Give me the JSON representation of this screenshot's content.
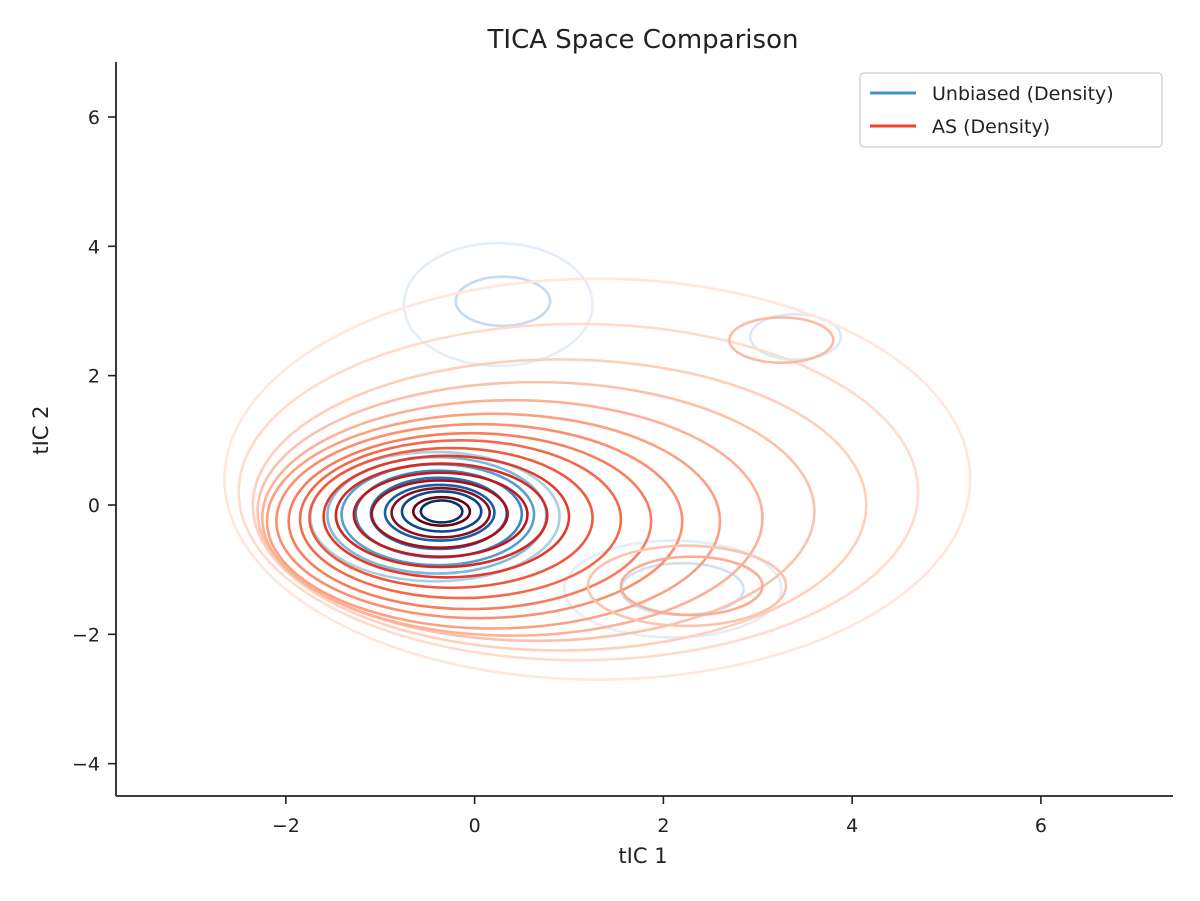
{
  "chart_data": {
    "type": "contour",
    "title": "TICA Space Comparison",
    "xlabel": "tIC 1",
    "ylabel": "tIC 2",
    "xlim": [
      -3.8,
      7.4
    ],
    "ylim": [
      -4.5,
      6.85
    ],
    "xticks": [
      -2,
      0,
      2,
      4,
      6
    ],
    "yticks": [
      -4,
      -2,
      0,
      2,
      4,
      6
    ],
    "xtick_labels": [
      "−2",
      "0",
      "2",
      "4",
      "6"
    ],
    "ytick_labels": [
      "−4",
      "−2",
      "0",
      "2",
      "4",
      "6"
    ],
    "grid": false,
    "legend": {
      "position": "top-right",
      "entries": [
        {
          "label": "Unbiased (Density)",
          "color": "#4393c3"
        },
        {
          "label": "AS (Density)",
          "color": "#e8452e"
        }
      ]
    },
    "series": [
      {
        "name": "Unbiased (Density)",
        "colormap": "Blues",
        "modes": [
          {
            "center": [
              -0.35,
              -0.1
            ],
            "spread": [
              0.2,
              0.15
            ]
          },
          {
            "center": [
              0.3,
              3.1
            ],
            "spread": [
              0.5,
              0.35
            ]
          },
          {
            "center": [
              3.4,
              2.6
            ],
            "spread": [
              0.45,
              0.3
            ]
          },
          {
            "center": [
              2.1,
              -1.3
            ],
            "spread": [
              0.6,
              0.35
            ]
          }
        ],
        "levels": [
          {
            "cx": -0.35,
            "cy": -0.1,
            "rx": 0.22,
            "ry": 0.17,
            "color": "#08306b"
          },
          {
            "cx": -0.35,
            "cy": -0.1,
            "rx": 0.42,
            "ry": 0.31,
            "color": "#0b4690"
          },
          {
            "cx": -0.37,
            "cy": -0.12,
            "rx": 0.58,
            "ry": 0.43,
            "color": "#1460a8"
          },
          {
            "cx": -0.38,
            "cy": -0.13,
            "rx": 0.72,
            "ry": 0.55,
            "color": "#2373b6"
          },
          {
            "cx": -0.38,
            "cy": -0.14,
            "rx": 0.88,
            "ry": 0.67,
            "color": "#3787c0"
          },
          {
            "cx": -0.39,
            "cy": -0.15,
            "rx": 1.02,
            "ry": 0.78,
            "color": "#549fcd"
          },
          {
            "cx": -0.4,
            "cy": -0.16,
            "rx": 1.16,
            "ry": 0.9,
            "color": "#7fb8da"
          },
          {
            "cx": -0.42,
            "cy": -0.18,
            "rx": 1.32,
            "ry": 1.0,
            "color": "#a9cfe5"
          },
          {
            "cx": 0.3,
            "cy": 3.15,
            "rx": 0.5,
            "ry": 0.38,
            "color": "#c6dbef"
          },
          {
            "cx": 0.25,
            "cy": 3.1,
            "rx": 1.0,
            "ry": 0.95,
            "color": "#e3eef9"
          },
          {
            "cx": 3.4,
            "cy": 2.6,
            "rx": 0.48,
            "ry": 0.35,
            "color": "#dbe9f6"
          },
          {
            "cx": 2.2,
            "cy": -1.3,
            "rx": 0.65,
            "ry": 0.4,
            "color": "#cfe1f2"
          },
          {
            "cx": 2.1,
            "cy": -1.3,
            "rx": 1.15,
            "ry": 0.75,
            "color": "#e3eef9"
          }
        ]
      },
      {
        "name": "AS (Density)",
        "colormap": "Reds",
        "modes": [
          {
            "center": [
              -0.35,
              -0.15
            ],
            "spread": [
              0.9,
              0.7
            ]
          },
          {
            "center": [
              0.2,
              3.0
            ],
            "spread": [
              0.8,
              0.5
            ]
          },
          {
            "center": [
              3.2,
              2.5
            ],
            "spread": [
              0.6,
              0.4
            ]
          },
          {
            "center": [
              2.2,
              -1.2
            ],
            "spread": [
              0.9,
              0.5
            ]
          }
        ],
        "levels": [
          {
            "cx": -0.35,
            "cy": -0.1,
            "rx": 0.3,
            "ry": 0.22,
            "color": "#67000d"
          },
          {
            "cx": -0.36,
            "cy": -0.12,
            "rx": 0.52,
            "ry": 0.38,
            "color": "#8b0d15"
          },
          {
            "cx": -0.37,
            "cy": -0.14,
            "rx": 0.72,
            "ry": 0.52,
            "color": "#a50f15"
          },
          {
            "cx": -0.36,
            "cy": -0.15,
            "rx": 0.92,
            "ry": 0.65,
            "color": "#c0181e"
          },
          {
            "cx": -0.35,
            "cy": -0.16,
            "rx": 1.12,
            "ry": 0.8,
            "color": "#d42a25"
          },
          {
            "cx": -0.3,
            "cy": -0.18,
            "rx": 1.3,
            "ry": 0.94,
            "color": "#e43a2c"
          },
          {
            "cx": -0.25,
            "cy": -0.2,
            "rx": 1.5,
            "ry": 1.08,
            "color": "#ef5a3e"
          },
          {
            "cx": -0.15,
            "cy": -0.22,
            "rx": 1.7,
            "ry": 1.22,
            "color": "#f4694b"
          },
          {
            "cx": -0.05,
            "cy": -0.25,
            "rx": 1.92,
            "ry": 1.36,
            "color": "#f87d5e"
          },
          {
            "cx": 0.05,
            "cy": -0.25,
            "rx": 2.15,
            "ry": 1.5,
            "color": "#fb8f70"
          },
          {
            "cx": 0.2,
            "cy": -0.25,
            "rx": 2.4,
            "ry": 1.66,
            "color": "#fca082"
          },
          {
            "cx": 0.4,
            "cy": -0.2,
            "rx": 2.65,
            "ry": 1.82,
            "color": "#fcb196"
          },
          {
            "cx": 0.65,
            "cy": -0.1,
            "rx": 2.95,
            "ry": 2.0,
            "color": "#fcc1aa"
          },
          {
            "cx": 0.9,
            "cy": 0.0,
            "rx": 3.25,
            "ry": 2.25,
            "color": "#fdcfbc"
          },
          {
            "cx": 1.1,
            "cy": 0.2,
            "rx": 3.6,
            "ry": 2.6,
            "color": "#fedccd"
          },
          {
            "cx": 1.3,
            "cy": 0.4,
            "rx": 3.95,
            "ry": 3.1,
            "color": "#fee7dc"
          },
          {
            "cx": 3.25,
            "cy": 2.55,
            "rx": 0.55,
            "ry": 0.35,
            "color": "#fcbba1"
          },
          {
            "cx": 2.3,
            "cy": -1.25,
            "rx": 0.75,
            "ry": 0.45,
            "color": "#fbad92"
          },
          {
            "cx": 2.25,
            "cy": -1.25,
            "rx": 1.05,
            "ry": 0.62,
            "color": "#fcc3ad"
          }
        ]
      }
    ]
  }
}
